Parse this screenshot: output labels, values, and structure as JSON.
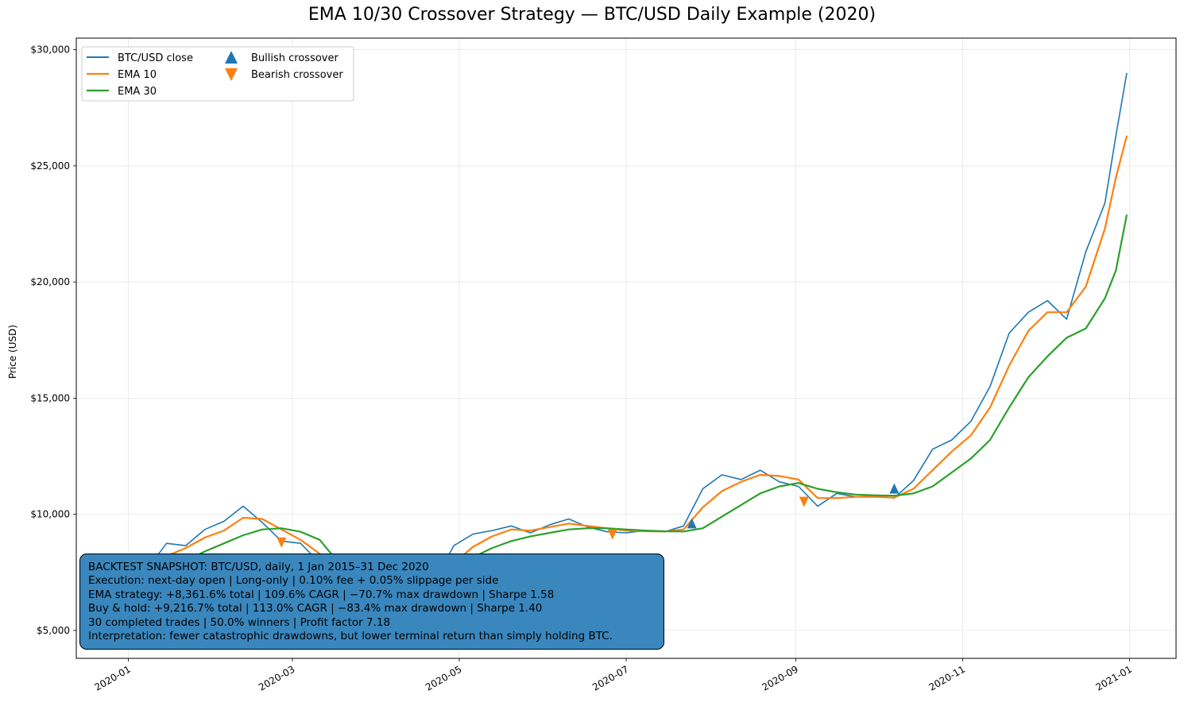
{
  "chart_data": {
    "type": "line",
    "title": "EMA 10/30 Crossover Strategy — BTC/USD Daily Example (2020)",
    "xlabel": "",
    "ylabel": "Price (USD)",
    "ylim": [
      3800,
      30500
    ],
    "xlim": [
      "2019-12-13",
      "2021-01-18"
    ],
    "grid": true,
    "legend_placement": "top-left",
    "y_ticks": [
      5000,
      10000,
      15000,
      20000,
      25000,
      30000
    ],
    "y_tick_labels": [
      "$5,000",
      "$10,000",
      "$15,000",
      "$20,000",
      "$25,000",
      "$30,000"
    ],
    "x_ticks": [
      "2020-01-01",
      "2020-03-01",
      "2020-05-01",
      "2020-07-01",
      "2020-09-01",
      "2020-11-01",
      "2021-01-01"
    ],
    "x_tick_labels": [
      "2020-01",
      "2020-03",
      "2020-05",
      "2020-07",
      "2020-09",
      "2020-11",
      "2021-01"
    ],
    "series": [
      {
        "name": "BTC/USD close",
        "color": "#1f77b4",
        "x": [
          "2020-01-01",
          "2020-01-08",
          "2020-01-15",
          "2020-01-22",
          "2020-01-29",
          "2020-02-05",
          "2020-02-12",
          "2020-02-19",
          "2020-02-26",
          "2020-03-04",
          "2020-03-11",
          "2020-03-18",
          "2020-03-25",
          "2020-04-01",
          "2020-04-08",
          "2020-04-15",
          "2020-04-22",
          "2020-04-29",
          "2020-05-06",
          "2020-05-13",
          "2020-05-20",
          "2020-05-27",
          "2020-06-03",
          "2020-06-10",
          "2020-06-17",
          "2020-06-24",
          "2020-07-01",
          "2020-07-08",
          "2020-07-15",
          "2020-07-22",
          "2020-07-29",
          "2020-08-05",
          "2020-08-12",
          "2020-08-19",
          "2020-08-26",
          "2020-09-02",
          "2020-09-09",
          "2020-09-16",
          "2020-09-23",
          "2020-09-30",
          "2020-10-07",
          "2020-10-14",
          "2020-10-21",
          "2020-10-28",
          "2020-11-04",
          "2020-11-11",
          "2020-11-18",
          "2020-11-25",
          "2020-12-02",
          "2020-12-09",
          "2020-12-16",
          "2020-12-23",
          "2020-12-27",
          "2020-12-31"
        ],
        "values": [
          7200,
          7650,
          8750,
          8650,
          9350,
          9700,
          10350,
          9650,
          8850,
          8750,
          7900,
          5350,
          6600,
          6650,
          7300,
          6850,
          7120,
          8650,
          9150,
          9300,
          9500,
          9200,
          9550,
          9800,
          9450,
          9250,
          9200,
          9300,
          9250,
          9500,
          11100,
          11700,
          11500,
          11900,
          11400,
          11200,
          10350,
          10900,
          10750,
          10800,
          10700,
          11450,
          12800,
          13200,
          14000,
          15500,
          17800,
          18700,
          19200,
          18400,
          21300,
          23400,
          26300,
          29000
        ]
      },
      {
        "name": "EMA 10",
        "color": "#ff7f0e",
        "x": [
          "2020-01-01",
          "2020-01-08",
          "2020-01-15",
          "2020-01-22",
          "2020-01-29",
          "2020-02-05",
          "2020-02-12",
          "2020-02-19",
          "2020-02-26",
          "2020-03-04",
          "2020-03-11",
          "2020-03-18",
          "2020-03-25",
          "2020-04-01",
          "2020-04-08",
          "2020-04-15",
          "2020-04-22",
          "2020-04-29",
          "2020-05-06",
          "2020-05-13",
          "2020-05-20",
          "2020-05-27",
          "2020-06-03",
          "2020-06-10",
          "2020-06-17",
          "2020-06-24",
          "2020-07-01",
          "2020-07-08",
          "2020-07-15",
          "2020-07-22",
          "2020-07-29",
          "2020-08-05",
          "2020-08-12",
          "2020-08-19",
          "2020-08-26",
          "2020-09-02",
          "2020-09-09",
          "2020-09-16",
          "2020-09-23",
          "2020-09-30",
          "2020-10-07",
          "2020-10-14",
          "2020-10-21",
          "2020-10-28",
          "2020-11-04",
          "2020-11-11",
          "2020-11-18",
          "2020-11-25",
          "2020-12-02",
          "2020-12-09",
          "2020-12-16",
          "2020-12-23",
          "2020-12-27",
          "2020-12-31"
        ],
        "values": [
          7300,
          7500,
          8200,
          8550,
          9000,
          9300,
          9850,
          9800,
          9350,
          8900,
          8300,
          6900,
          6700,
          6800,
          7050,
          7000,
          7100,
          7900,
          8600,
          9050,
          9350,
          9300,
          9450,
          9600,
          9500,
          9400,
          9300,
          9270,
          9260,
          9350,
          10300,
          11000,
          11400,
          11700,
          11650,
          11500,
          10700,
          10700,
          10750,
          10750,
          10720,
          11100,
          11900,
          12700,
          13400,
          14600,
          16400,
          17900,
          18700,
          18700,
          19800,
          22300,
          24500,
          26300
        ]
      },
      {
        "name": "EMA 30",
        "color": "#2ca02c",
        "x": [
          "2020-01-01",
          "2020-01-08",
          "2020-01-15",
          "2020-01-22",
          "2020-01-29",
          "2020-02-05",
          "2020-02-12",
          "2020-02-19",
          "2020-02-26",
          "2020-03-04",
          "2020-03-11",
          "2020-03-18",
          "2020-03-25",
          "2020-04-01",
          "2020-04-08",
          "2020-04-15",
          "2020-04-22",
          "2020-04-29",
          "2020-05-06",
          "2020-05-13",
          "2020-05-20",
          "2020-05-27",
          "2020-06-03",
          "2020-06-10",
          "2020-06-17",
          "2020-06-24",
          "2020-07-01",
          "2020-07-08",
          "2020-07-15",
          "2020-07-22",
          "2020-07-29",
          "2020-08-05",
          "2020-08-12",
          "2020-08-19",
          "2020-08-26",
          "2020-09-02",
          "2020-09-09",
          "2020-09-16",
          "2020-09-23",
          "2020-09-30",
          "2020-10-07",
          "2020-10-14",
          "2020-10-21",
          "2020-10-28",
          "2020-11-04",
          "2020-11-11",
          "2020-11-18",
          "2020-11-25",
          "2020-12-02",
          "2020-12-09",
          "2020-12-16",
          "2020-12-23",
          "2020-12-27",
          "2020-12-31"
        ],
        "values": [
          7100,
          7250,
          7600,
          8000,
          8400,
          8750,
          9100,
          9350,
          9400,
          9250,
          8900,
          7900,
          7400,
          7200,
          7150,
          7100,
          7150,
          7600,
          8150,
          8550,
          8850,
          9050,
          9200,
          9350,
          9400,
          9400,
          9350,
          9300,
          9270,
          9260,
          9400,
          9900,
          10400,
          10900,
          11200,
          11350,
          11100,
          10950,
          10850,
          10820,
          10800,
          10900,
          11200,
          11800,
          12400,
          13200,
          14600,
          15900,
          16800,
          17600,
          18000,
          19300,
          20500,
          22900
        ]
      }
    ],
    "markers": [
      {
        "name": "Bullish crossover",
        "symbol": "triangle-up",
        "color": "#1f77b4",
        "points": [
          {
            "x": "2020-07-25",
            "y": 9600
          },
          {
            "x": "2020-10-07",
            "y": 11100
          }
        ]
      },
      {
        "name": "Bearish crossover",
        "symbol": "triangle-down",
        "color": "#ff7f0e",
        "points": [
          {
            "x": "2020-02-26",
            "y": 8800
          },
          {
            "x": "2020-06-26",
            "y": 9150
          },
          {
            "x": "2020-09-04",
            "y": 10550
          }
        ]
      }
    ]
  },
  "snapshot_lines": [
    "BACKTEST SNAPSHOT: BTC/USD, daily, 1 Jan 2015–31 Dec 2020",
    "Execution: next-day open | Long-only | 0.10% fee + 0.05% slippage per side",
    "EMA strategy: +8,361.6% total | 109.6% CAGR | −70.7% max drawdown | Sharpe 1.58",
    "Buy & hold: +9,216.7% total | 113.0% CAGR | −83.4% max drawdown | Sharpe 1.40",
    "30 completed trades | 50.0% winners | Profit factor 7.18",
    "Interpretation: fewer catastrophic drawdowns, but lower terminal return than simply holding BTC."
  ]
}
